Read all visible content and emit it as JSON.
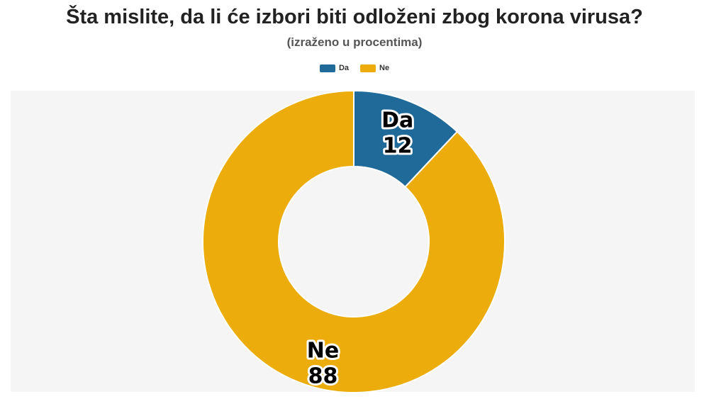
{
  "title": "Šta mislite, da li će izbori biti odloženi zbog korona virusa?",
  "subtitle": "(izraženo u procentima)",
  "colors": {
    "da": "#1f6a99",
    "ne": "#ebac0c",
    "plot_background": "#f5f5f5"
  },
  "legend": [
    {
      "label": "Da",
      "color": "#1f6a99"
    },
    {
      "label": "Ne",
      "color": "#ebac0c"
    }
  ],
  "chart_data": {
    "type": "pie",
    "variant": "donut",
    "title": "Šta mislite, da li će izbori biti odloženi zbog korona virusa?",
    "subtitle": "(izraženo u procentima)",
    "categories": [
      "Da",
      "Ne"
    ],
    "values": [
      12,
      88
    ],
    "colors": [
      "#1f6a99",
      "#ebac0c"
    ],
    "legend_position": "top-center"
  }
}
